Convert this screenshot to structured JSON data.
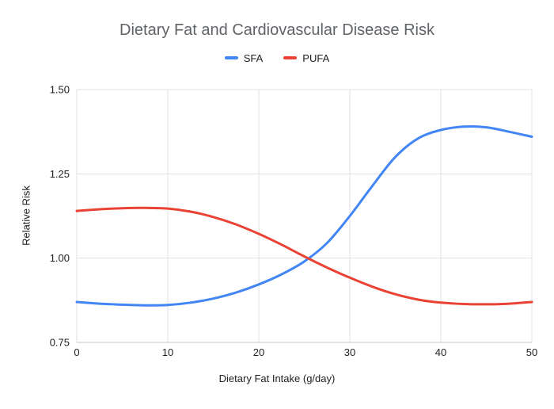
{
  "title": "Dietary Fat and Cardiovascular Disease Risk",
  "x_axis_title": "Dietary Fat Intake (g/day)",
  "y_axis_title": "Relative Risk",
  "legend": [
    {
      "label": "SFA",
      "color": "#4285F4"
    },
    {
      "label": "PUFA",
      "color": "#EA4335"
    }
  ],
  "style": {
    "background": "#ffffff",
    "title_color": "#5f6368",
    "tick_color": "#202124",
    "axis_title_color": "#202124",
    "grid_color": "#e0e0e0",
    "baseline_color": "#c9c9c9"
  },
  "chart_data": {
    "type": "line",
    "title": "Dietary Fat and Cardiovascular Disease Risk",
    "xlabel": "Dietary Fat Intake (g/day)",
    "ylabel": "Relative Risk",
    "xlim": [
      0,
      50
    ],
    "ylim": [
      0.75,
      1.5
    ],
    "x_ticks": [
      0,
      10,
      20,
      30,
      40,
      50
    ],
    "y_ticks": [
      0.75,
      1.0,
      1.25,
      1.5
    ],
    "grid": true,
    "legend_position": "top",
    "x": [
      0,
      2.5,
      5,
      7.5,
      10,
      12.5,
      15,
      17.5,
      20,
      22.5,
      25,
      27.5,
      30,
      32.5,
      35,
      37.5,
      40,
      42.5,
      45,
      47.5,
      50
    ],
    "series": [
      {
        "name": "SFA",
        "color": "#4285F4",
        "values": [
          0.87,
          0.865,
          0.862,
          0.86,
          0.861,
          0.868,
          0.88,
          0.898,
          0.922,
          0.952,
          0.99,
          1.045,
          1.125,
          1.215,
          1.3,
          1.355,
          1.38,
          1.39,
          1.388,
          1.375,
          1.36
        ]
      },
      {
        "name": "PUFA",
        "color": "#EA4335",
        "values": [
          1.14,
          1.145,
          1.148,
          1.149,
          1.147,
          1.138,
          1.122,
          1.1,
          1.072,
          1.04,
          1.005,
          0.972,
          0.942,
          0.915,
          0.893,
          0.877,
          0.868,
          0.864,
          0.863,
          0.865,
          0.87
        ]
      }
    ]
  }
}
